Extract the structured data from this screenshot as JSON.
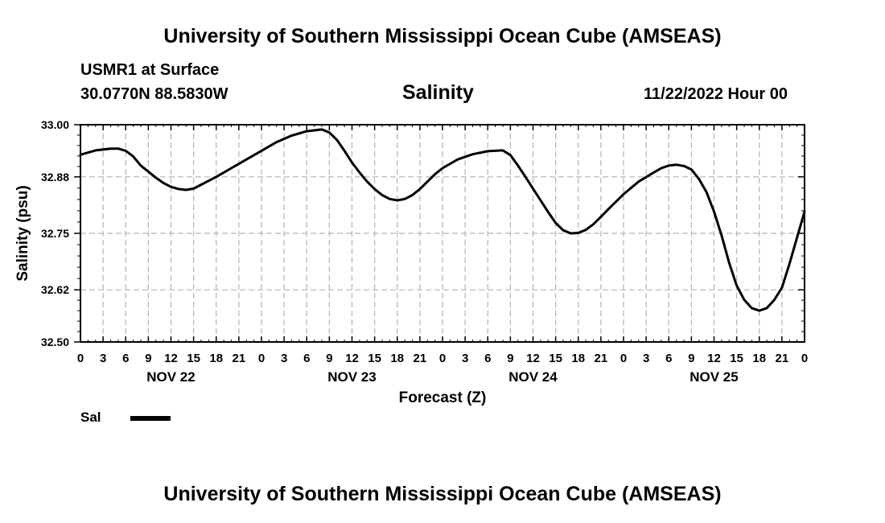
{
  "header": {
    "title_top": "University of Southern Mississippi Ocean Cube (AMSEAS)",
    "title_bottom": "University of Southern Mississippi Ocean Cube (AMSEAS)",
    "station": "USMR1 at Surface",
    "coords": "30.0770N  88.5830W",
    "plot_title": "Salinity",
    "datetime": "11/22/2022 Hour 00"
  },
  "legend": {
    "label": "Sal"
  },
  "chart_data": {
    "type": "line",
    "title": "Salinity",
    "xlabel": "Forecast (Z)",
    "ylabel": "Salinity (psu)",
    "xlim": [
      0,
      96
    ],
    "ylim": [
      32.5,
      33.0
    ],
    "yticks": [
      32.5,
      32.62,
      32.75,
      32.88,
      33.0
    ],
    "ytick_labels": [
      "32.50",
      "32.62",
      "32.75",
      "32.88",
      "33.00"
    ],
    "xticks": [
      0,
      3,
      6,
      9,
      12,
      15,
      18,
      21,
      24,
      27,
      30,
      33,
      36,
      39,
      42,
      45,
      48,
      51,
      54,
      57,
      60,
      63,
      66,
      69,
      72,
      75,
      78,
      81,
      84,
      87,
      90,
      93,
      96
    ],
    "xtick_labels": [
      "0",
      "3",
      "6",
      "9",
      "12",
      "15",
      "18",
      "21",
      "0",
      "3",
      "6",
      "9",
      "12",
      "15",
      "18",
      "21",
      "0",
      "3",
      "6",
      "9",
      "12",
      "15",
      "18",
      "21",
      "0",
      "3",
      "6",
      "9",
      "12",
      "15",
      "18",
      "21",
      "0"
    ],
    "day_labels": [
      {
        "x": 12,
        "label": "NOV 22"
      },
      {
        "x": 36,
        "label": "NOV 23"
      },
      {
        "x": 60,
        "label": "NOV 24"
      },
      {
        "x": 84,
        "label": "NOV 25"
      }
    ],
    "grid": true,
    "series": [
      {
        "name": "Sal",
        "color": "#000000",
        "x": [
          0,
          2,
          4,
          5,
          6,
          7,
          8,
          9,
          10,
          11,
          12,
          13,
          14,
          15,
          16,
          18,
          20,
          22,
          24,
          26,
          28,
          30,
          32,
          33,
          34,
          35,
          36,
          37,
          38,
          39,
          40,
          41,
          42,
          43,
          44,
          45,
          46,
          47,
          48,
          50,
          52,
          54,
          56,
          57,
          58,
          59,
          60,
          61,
          62,
          63,
          64,
          65,
          66,
          67,
          68,
          69,
          70,
          72,
          74,
          76,
          77,
          78,
          79,
          80,
          81,
          82,
          83,
          84,
          85,
          86,
          87,
          88,
          89,
          90,
          91,
          92,
          93,
          94,
          95,
          96
        ],
        "y": [
          32.931,
          32.941,
          32.945,
          32.945,
          32.94,
          32.927,
          32.906,
          32.892,
          32.878,
          32.866,
          32.857,
          32.852,
          32.85,
          32.853,
          32.862,
          32.88,
          32.9,
          32.92,
          32.94,
          32.96,
          32.975,
          32.985,
          32.989,
          32.982,
          32.965,
          32.94,
          32.913,
          32.89,
          32.869,
          32.852,
          32.838,
          32.829,
          32.826,
          32.829,
          32.838,
          32.852,
          32.869,
          32.886,
          32.9,
          32.92,
          32.932,
          32.939,
          32.941,
          32.93,
          32.906,
          32.88,
          32.853,
          32.826,
          32.799,
          32.774,
          32.757,
          32.75,
          32.751,
          32.758,
          32.771,
          32.788,
          32.806,
          32.84,
          32.869,
          32.89,
          32.9,
          32.906,
          32.908,
          32.905,
          32.897,
          32.875,
          32.845,
          32.8,
          32.745,
          32.682,
          32.63,
          32.597,
          32.578,
          32.572,
          32.578,
          32.597,
          32.625,
          32.68,
          32.74,
          32.8
        ]
      }
    ]
  }
}
